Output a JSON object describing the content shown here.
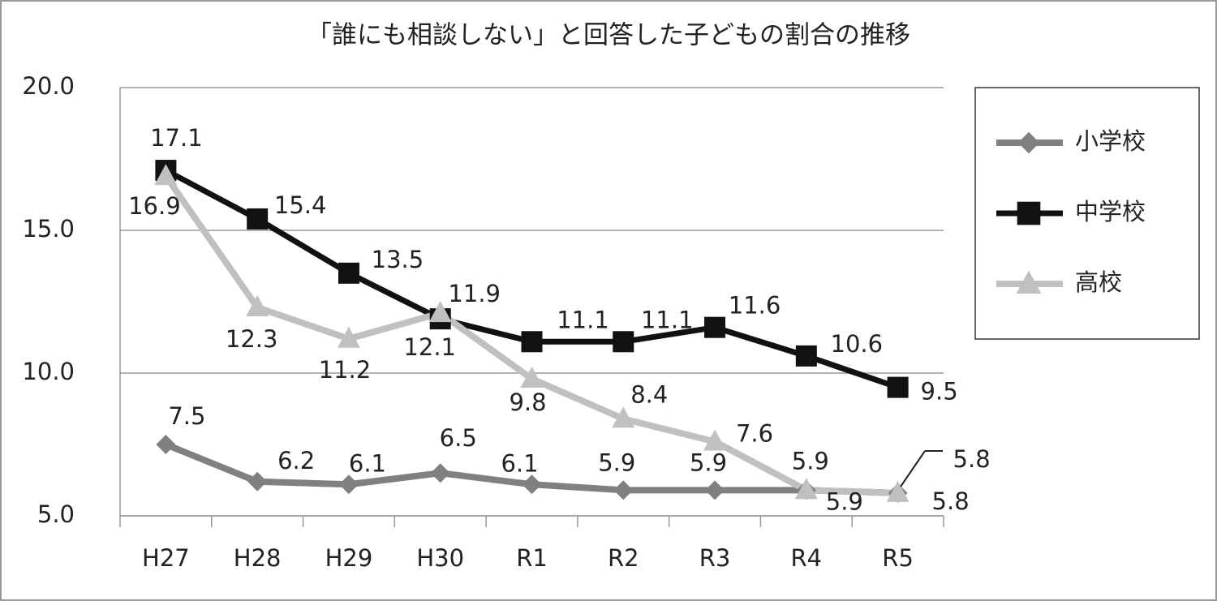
{
  "chart_data": {
    "type": "line",
    "title": "「誰にも相談しない」と回答した子どもの割合の推移",
    "categories": [
      "H27",
      "H28",
      "H29",
      "H30",
      "R1",
      "R2",
      "R3",
      "R4",
      "R5"
    ],
    "series": [
      {
        "name": "小学校",
        "color": "#808080",
        "marker": "diamond",
        "values": [
          7.5,
          6.2,
          6.1,
          6.5,
          6.1,
          5.9,
          5.9,
          5.9,
          5.8
        ]
      },
      {
        "name": "中学校",
        "color": "#111111",
        "marker": "square",
        "values": [
          17.1,
          15.4,
          13.5,
          11.9,
          11.1,
          11.1,
          11.6,
          10.6,
          9.5
        ]
      },
      {
        "name": "高校",
        "color": "#c0c0c0",
        "marker": "triangle",
        "values": [
          16.9,
          12.3,
          11.2,
          12.1,
          9.8,
          8.4,
          7.6,
          5.9,
          5.8
        ]
      }
    ],
    "ylim": [
      5,
      20
    ],
    "yticks": [
      {
        "value": 5,
        "label": "5.0"
      },
      {
        "value": 10,
        "label": "10.0"
      },
      {
        "value": 15,
        "label": "15.0"
      },
      {
        "value": 20,
        "label": "20.0"
      }
    ],
    "grid": true,
    "legend": "right"
  }
}
